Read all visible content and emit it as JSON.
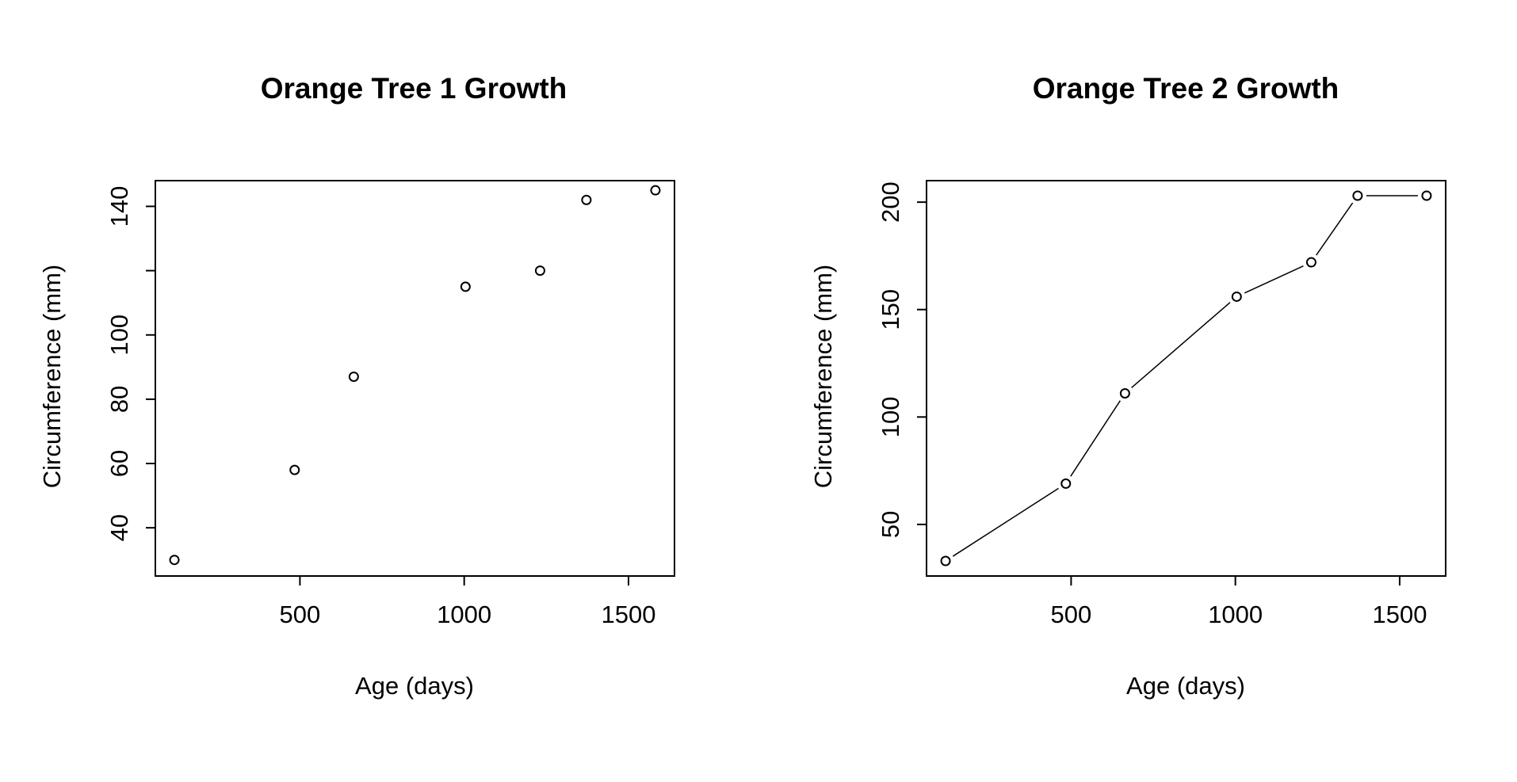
{
  "chart_data": [
    {
      "type": "scatter",
      "title": "Orange Tree 1 Growth",
      "xlabel": "Age (days)",
      "ylabel": "Circumference (mm)",
      "xlim": [
        60,
        1640
      ],
      "ylim": [
        25,
        148
      ],
      "xticks": [
        500,
        1000,
        1500
      ],
      "yticks": [
        40,
        60,
        80,
        100,
        120,
        140
      ],
      "ytick_labels": [
        "40",
        "60",
        "80",
        "100",
        "",
        "140"
      ],
      "grid": false,
      "series": [
        {
          "x": [
            118,
            484,
            664,
            1004,
            1231,
            1372,
            1582
          ],
          "y": [
            30,
            58,
            87,
            115,
            120,
            142,
            145
          ]
        }
      ]
    },
    {
      "type": "line",
      "title": "Orange Tree 2 Growth",
      "xlabel": "Age (days)",
      "ylabel": "Circumference (mm)",
      "xlim": [
        60,
        1640
      ],
      "ylim": [
        26,
        210
      ],
      "xticks": [
        500,
        1000,
        1500
      ],
      "yticks": [
        50,
        100,
        150,
        200
      ],
      "ytick_labels": [
        "50",
        "100",
        "150",
        "200"
      ],
      "grid": false,
      "series": [
        {
          "x": [
            118,
            484,
            664,
            1004,
            1231,
            1372,
            1582
          ],
          "y": [
            33,
            69,
            111,
            156,
            172,
            203,
            203
          ]
        }
      ]
    }
  ]
}
